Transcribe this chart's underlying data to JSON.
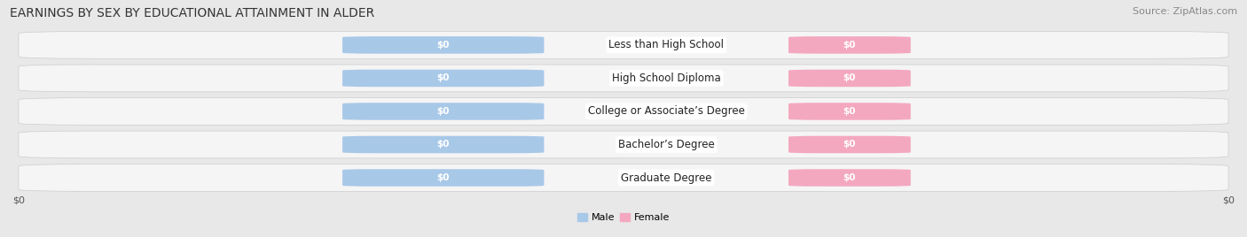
{
  "title": "EARNINGS BY SEX BY EDUCATIONAL ATTAINMENT IN ALDER",
  "source": "Source: ZipAtlas.com",
  "categories": [
    "Less than High School",
    "High School Diploma",
    "College or Associate’s Degree",
    "Bachelor’s Degree",
    "Graduate Degree"
  ],
  "male_values": [
    0,
    0,
    0,
    0,
    0
  ],
  "female_values": [
    0,
    0,
    0,
    0,
    0
  ],
  "male_color": "#a8c8e8",
  "female_color": "#f4a8c0",
  "bar_label": "$0",
  "background_color": "#e8e8e8",
  "row_light_color": "#f5f5f5",
  "row_dark_color": "#e0e0e0",
  "xlabel_left": "$0",
  "xlabel_right": "$0",
  "legend_male": "Male",
  "legend_female": "Female",
  "title_fontsize": 10,
  "source_fontsize": 8,
  "label_fontsize": 7.5,
  "category_fontsize": 8.5
}
